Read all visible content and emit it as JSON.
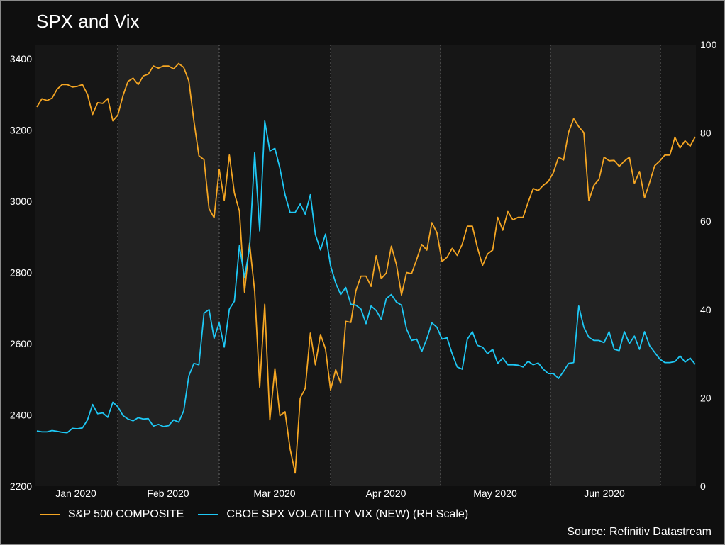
{
  "title": "SPX and Vix",
  "source": "Source: Refinitiv Datastream",
  "colors": {
    "spx": "#f5a623",
    "vix": "#1ec8f5",
    "background": "#0f0f0f",
    "plot_dark": "#161616",
    "plot_light": "#222222",
    "grid": "#6b6b6b"
  },
  "chart_data": {
    "type": "line",
    "title": "SPX and Vix",
    "x_tick_labels": [
      "Jan 2020",
      "Feb 2020",
      "Mar 2020",
      "Apr 2020",
      "May 2020",
      "Jun 2020"
    ],
    "y_left": {
      "ticks": [
        2200,
        2400,
        2600,
        2800,
        3000,
        3200,
        3400
      ],
      "ylim": [
        2200,
        3440
      ]
    },
    "y_right": {
      "ticks": [
        0,
        20,
        40,
        60,
        80,
        100
      ],
      "ylim": [
        0,
        100
      ]
    },
    "grid": "vertical-dotted",
    "legend_position": "bottom",
    "series": [
      {
        "name": "S&P 500 COMPOSITE",
        "axis": "left",
        "values": [
          3265,
          3288,
          3283,
          3290,
          3315,
          3328,
          3328,
          3321,
          3323,
          3328,
          3300,
          3244,
          3277,
          3275,
          3289,
          3226,
          3243,
          3297,
          3337,
          3346,
          3328,
          3352,
          3357,
          3380,
          3374,
          3380,
          3380,
          3372,
          3387,
          3376,
          3338,
          3226,
          3128,
          3117,
          2979,
          2954,
          3090,
          3003,
          3130,
          3023,
          2972,
          2745,
          2882,
          2747,
          2478,
          2711,
          2386,
          2530,
          2398,
          2409,
          2305,
          2237,
          2447,
          2475,
          2630,
          2541,
          2626,
          2585,
          2470,
          2527,
          2489,
          2663,
          2660,
          2749,
          2790,
          2790,
          2761,
          2847,
          2783,
          2799,
          2874,
          2823,
          2737,
          2800,
          2797,
          2837,
          2879,
          2863,
          2940,
          2912,
          2831,
          2843,
          2868,
          2848,
          2880,
          2930,
          2930,
          2870,
          2820,
          2852,
          2863,
          2955,
          2919,
          2971,
          2948,
          2955,
          2955,
          2997,
          3036,
          3030,
          3045,
          3056,
          3081,
          3124,
          3116,
          3194,
          3232,
          3210,
          3193,
          3002,
          3045,
          3062,
          3124,
          3114,
          3115,
          3098,
          3113,
          3124,
          3050,
          3084,
          3010,
          3053,
          3100,
          3113,
          3130,
          3130,
          3180,
          3150,
          3170,
          3155,
          3181
        ]
      },
      {
        "name": "CBOE SPX VOLATILITY VIX (NEW) (RH Scale)",
        "axis": "right",
        "values": [
          12.5,
          12.3,
          12.3,
          12.6,
          12.4,
          12.2,
          12.1,
          13.1,
          13.0,
          13.2,
          15.0,
          18.5,
          16.4,
          16.6,
          15.6,
          19.0,
          18.0,
          16.0,
          15.2,
          14.8,
          15.5,
          15.2,
          15.3,
          13.6,
          14.0,
          13.5,
          13.7,
          15.0,
          14.5,
          17.1,
          25.0,
          27.8,
          27.5,
          39.2,
          40.0,
          33.5,
          37.0,
          31.5,
          40.1,
          41.9,
          54.5,
          47.3,
          53.9,
          75.5,
          57.8,
          82.7,
          75.9,
          76.5,
          72.0,
          66.0,
          62.0,
          62.0,
          63.9,
          61.6,
          66.0,
          57.0,
          53.5,
          57.1,
          49.9,
          46.0,
          43.4,
          45.0,
          41.2,
          41.0,
          40.1,
          36.8,
          40.8,
          39.8,
          37.8,
          42.5,
          43.4,
          41.7,
          41.0,
          35.6,
          33.0,
          33.3,
          30.5,
          33.4,
          37.0,
          36.0,
          33.3,
          33.6,
          30.0,
          27.0,
          26.5,
          33.3,
          35.0,
          31.9,
          31.5,
          30.0,
          31.0,
          27.8,
          29.0,
          27.5,
          27.5,
          27.4,
          27.0,
          28.3,
          27.5,
          27.9,
          26.5,
          25.5,
          25.5,
          24.4,
          26.0,
          27.8,
          28.0,
          40.8,
          36.0,
          33.7,
          33.0,
          33.0,
          32.5,
          35.0,
          31.0,
          30.7,
          35.0,
          32.3,
          34.0,
          31.0,
          35.0,
          31.8,
          30.3,
          28.8,
          28.0,
          28.0,
          28.2,
          29.5,
          28.1,
          29.0,
          27.6
        ]
      }
    ]
  }
}
